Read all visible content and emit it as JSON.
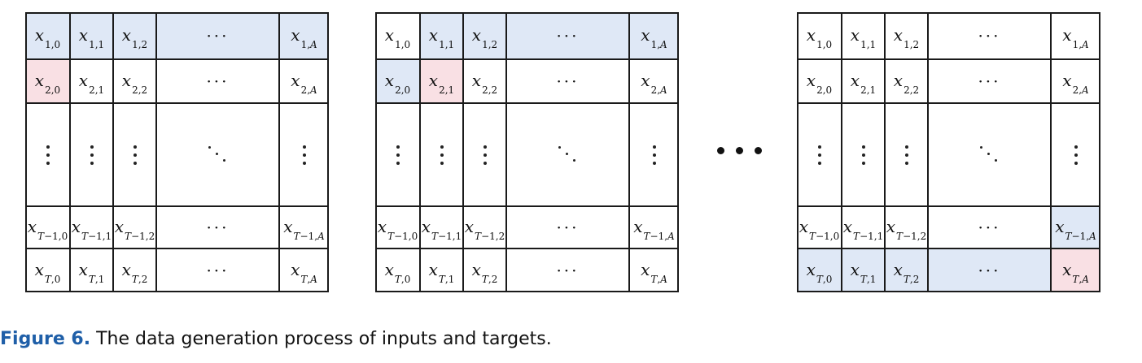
{
  "figure": {
    "caption_label": "Figure 6.",
    "caption_text": "The data generation process of inputs and targets.",
    "colors": {
      "input_highlight": "#dfe8f6",
      "target_highlight": "#f9e0e4",
      "border": "#1a1a1a"
    },
    "matrix": {
      "rows": [
        [
          "x|1,0",
          "x|1,1",
          "x|1,2",
          "hdots",
          "x|1,A"
        ],
        [
          "x|2,0",
          "x|2,1",
          "x|2,2",
          "hdots",
          "x|2,A"
        ],
        [
          "vdots",
          "vdots",
          "vdots",
          "ddots",
          "vdots"
        ],
        [
          "x|T−1,0",
          "x|T−1,1",
          "x|T−1,2",
          "hdots",
          "x|T−1,A"
        ],
        [
          "x|T,0",
          "x|T,1",
          "x|T,2",
          "hdots",
          "x|T,A"
        ]
      ]
    },
    "panels": [
      {
        "name": "step-1",
        "input_cells": [
          [
            0,
            0
          ],
          [
            0,
            1
          ],
          [
            0,
            2
          ],
          [
            0,
            3
          ],
          [
            0,
            4
          ]
        ],
        "target_cells": [
          [
            1,
            0
          ]
        ]
      },
      {
        "name": "step-2",
        "input_cells": [
          [
            0,
            1
          ],
          [
            0,
            2
          ],
          [
            0,
            3
          ],
          [
            0,
            4
          ],
          [
            1,
            0
          ]
        ],
        "target_cells": [
          [
            1,
            1
          ]
        ]
      },
      {
        "name": "step-last",
        "input_cells": [
          [
            3,
            4
          ],
          [
            4,
            0
          ],
          [
            4,
            1
          ],
          [
            4,
            2
          ],
          [
            4,
            3
          ]
        ],
        "target_cells": [
          [
            4,
            4
          ]
        ]
      }
    ]
  }
}
